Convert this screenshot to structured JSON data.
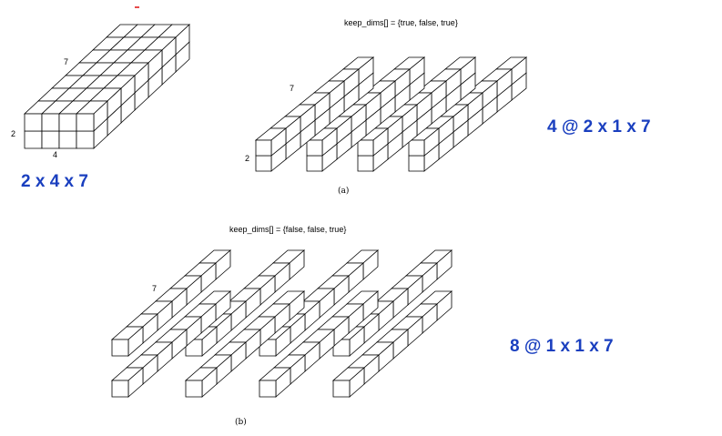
{
  "colors": {
    "accent": "#1a3fbf",
    "marker": "#e0201f"
  },
  "panel_top_left": {
    "dim_height": "2",
    "dim_width": "4",
    "dim_depth": "7",
    "shape_label": "2 x 4 x 7"
  },
  "panel_a": {
    "keep_dims": "keep_dims[] = {true, false, true}",
    "dim_height": "2",
    "dim_depth": "7",
    "result_label": "4 @ 2 x 1 x 7",
    "caption": "(a)"
  },
  "panel_b": {
    "keep_dims": "keep_dims[] = {false, false, true}",
    "dim_depth": "7",
    "result_label": "8 @ 1 x 1 x 7",
    "caption": "(b)"
  }
}
